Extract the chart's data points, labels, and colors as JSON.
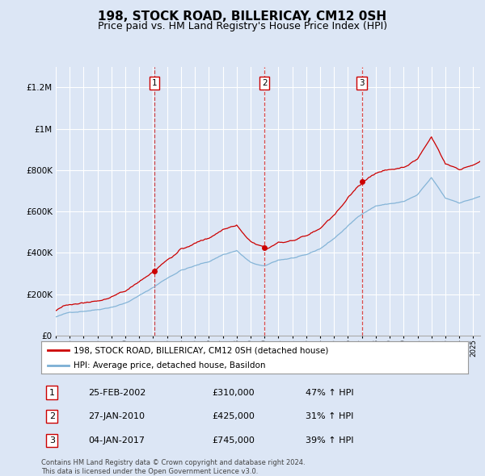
{
  "title": "198, STOCK ROAD, BILLERICAY, CM12 0SH",
  "subtitle": "Price paid vs. HM Land Registry's House Price Index (HPI)",
  "ylim": [
    0,
    1300000
  ],
  "yticks": [
    0,
    200000,
    400000,
    600000,
    800000,
    1000000,
    1200000
  ],
  "ytick_labels": [
    "£0",
    "£200K",
    "£400K",
    "£600K",
    "£800K",
    "£1M",
    "£1.2M"
  ],
  "background_color": "#dce6f5",
  "plot_bg_color": "#dce6f5",
  "grid_color": "#ffffff",
  "sale_color": "#cc0000",
  "hpi_color": "#7bafd4",
  "sale_prices": [
    310000,
    425000,
    745000
  ],
  "sale_labels": [
    "1",
    "2",
    "3"
  ],
  "transactions": [
    {
      "label": "1",
      "date": "25-FEB-2002",
      "price": "£310,000",
      "pct": "47% ↑ HPI"
    },
    {
      "label": "2",
      "date": "27-JAN-2010",
      "price": "£425,000",
      "pct": "31% ↑ HPI"
    },
    {
      "label": "3",
      "date": "04-JAN-2017",
      "price": "£745,000",
      "pct": "39% ↑ HPI"
    }
  ],
  "legend_sale": "198, STOCK ROAD, BILLERICAY, CM12 0SH (detached house)",
  "legend_hpi": "HPI: Average price, detached house, Basildon",
  "footer": "Contains HM Land Registry data © Crown copyright and database right 2024.\nThis data is licensed under the Open Government Licence v3.0.",
  "title_fontsize": 11,
  "subtitle_fontsize": 9
}
